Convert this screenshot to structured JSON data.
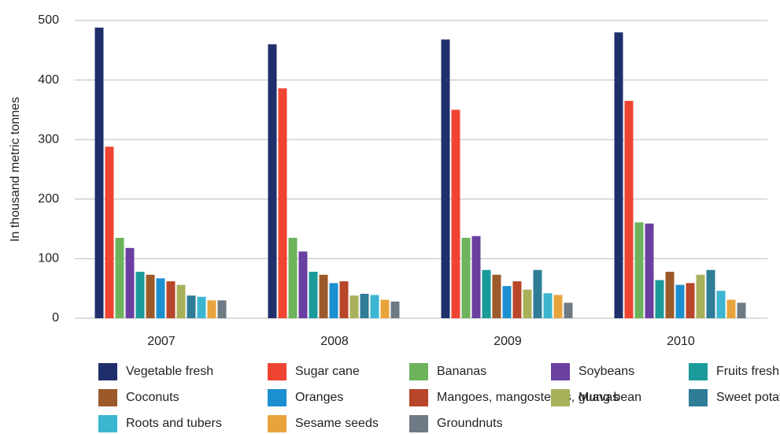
{
  "chart_data": {
    "type": "bar",
    "y_label": "In thousand metric tonnes",
    "categories": [
      "2007",
      "2008",
      "2009",
      "2010"
    ],
    "ylim": [
      0,
      500
    ],
    "yticks": [
      0,
      100,
      200,
      300,
      400,
      500
    ],
    "grid": true,
    "series": [
      {
        "name": "Vegetable fresh",
        "color": "#1f2f6b",
        "values": [
          488,
          460,
          468,
          480
        ]
      },
      {
        "name": "Sugar cane",
        "color": "#ee4431",
        "values": [
          288,
          386,
          350,
          365
        ]
      },
      {
        "name": "Bananas",
        "color": "#6db35c",
        "values": [
          135,
          135,
          135,
          161
        ]
      },
      {
        "name": "Soybeans",
        "color": "#6a3fa0",
        "values": [
          118,
          112,
          138,
          159
        ]
      },
      {
        "name": "Fruits fresh",
        "color": "#1a9a9a",
        "values": [
          78,
          78,
          81,
          64
        ]
      },
      {
        "name": "Coconuts",
        "color": "#9c5a2a",
        "values": [
          73,
          73,
          73,
          78
        ]
      },
      {
        "name": "Oranges",
        "color": "#1c8fd0",
        "values": [
          67,
          59,
          54,
          56
        ]
      },
      {
        "name": "Mangoes, mangosteens, guavas",
        "color": "#b8462a",
        "values": [
          62,
          62,
          62,
          59
        ]
      },
      {
        "name": "Mung bean",
        "color": "#a8b05a",
        "values": [
          56,
          38,
          48,
          73
        ]
      },
      {
        "name": "Sweet potatoes",
        "color": "#2f7c96",
        "values": [
          38,
          41,
          81,
          81
        ]
      },
      {
        "name": "Roots and tubers",
        "color": "#3bb5d0",
        "values": [
          36,
          39,
          42,
          46
        ]
      },
      {
        "name": "Sesame seeds",
        "color": "#e8a43c",
        "values": [
          30,
          31,
          39,
          31
        ]
      },
      {
        "name": "Groundnuts",
        "color": "#6e7b85",
        "values": [
          30,
          28,
          26,
          26
        ]
      }
    ]
  }
}
